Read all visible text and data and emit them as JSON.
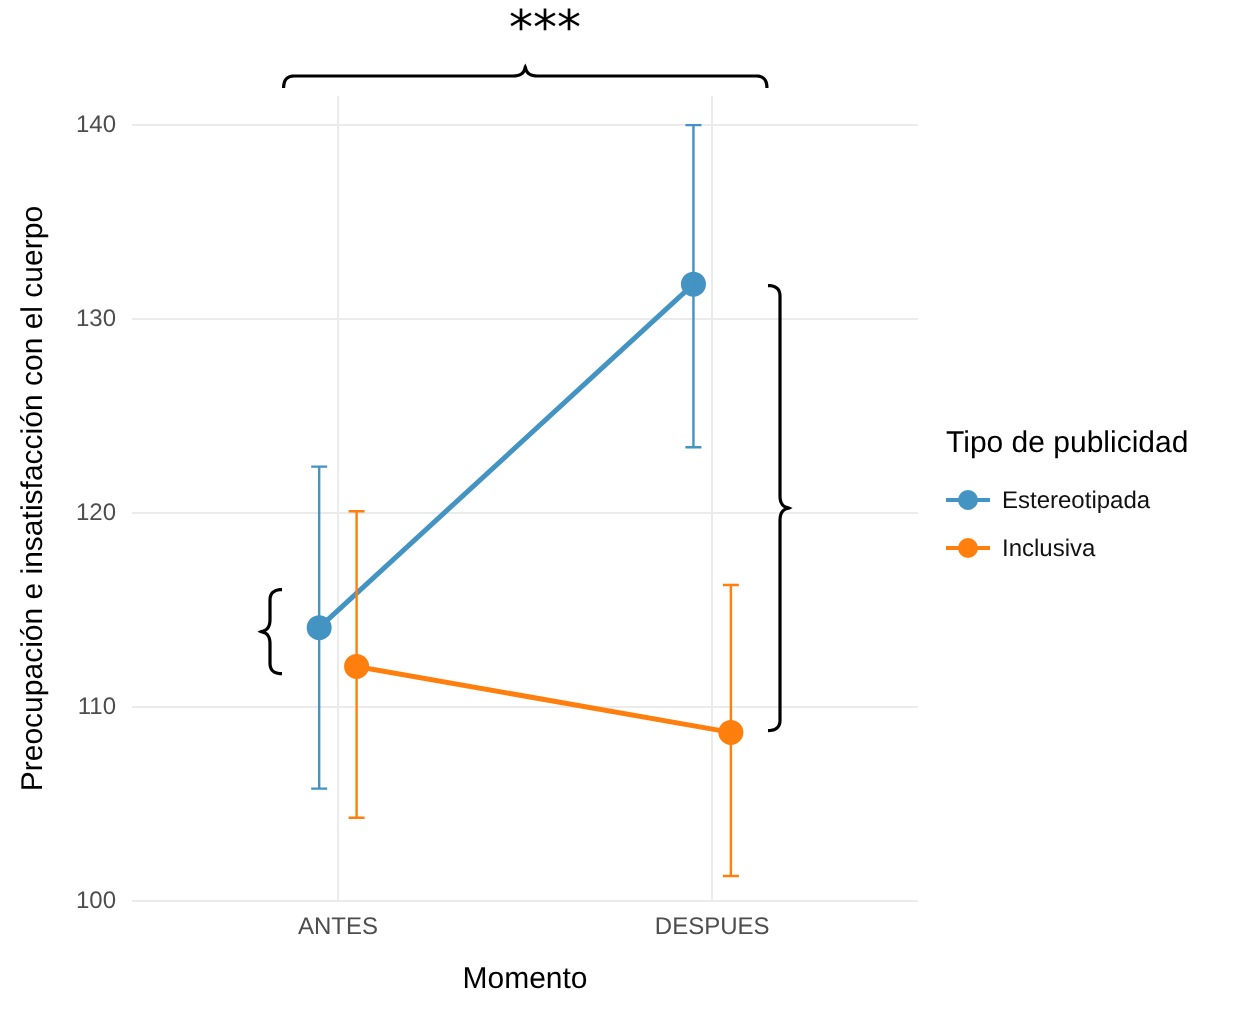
{
  "chart_data": {
    "type": "line",
    "xlabel": "Momento",
    "ylabel": "Preocupación e insatisfacción con el cuerpo",
    "legend_title": "Tipo de publicidad",
    "categories": [
      "ANTES",
      "DESPUES"
    ],
    "series": [
      {
        "name": "Estereotipada",
        "color": "#4393c3",
        "values": [
          114.1,
          131.8
        ],
        "errors": [
          [
            105.8,
            122.4
          ],
          [
            123.4,
            140.0
          ]
        ]
      },
      {
        "name": "Inclusiva",
        "color": "#ff7f0e",
        "values": [
          112.1,
          108.7
        ],
        "errors": [
          [
            104.3,
            120.1
          ],
          [
            101.3,
            116.3
          ]
        ]
      }
    ],
    "ylim": [
      100,
      141.5
    ],
    "yticks": [
      100,
      110,
      120,
      130,
      140
    ],
    "grid": true,
    "legend": "right",
    "marker": "circle",
    "line_style": "solid",
    "annotations": [
      "***"
    ]
  }
}
